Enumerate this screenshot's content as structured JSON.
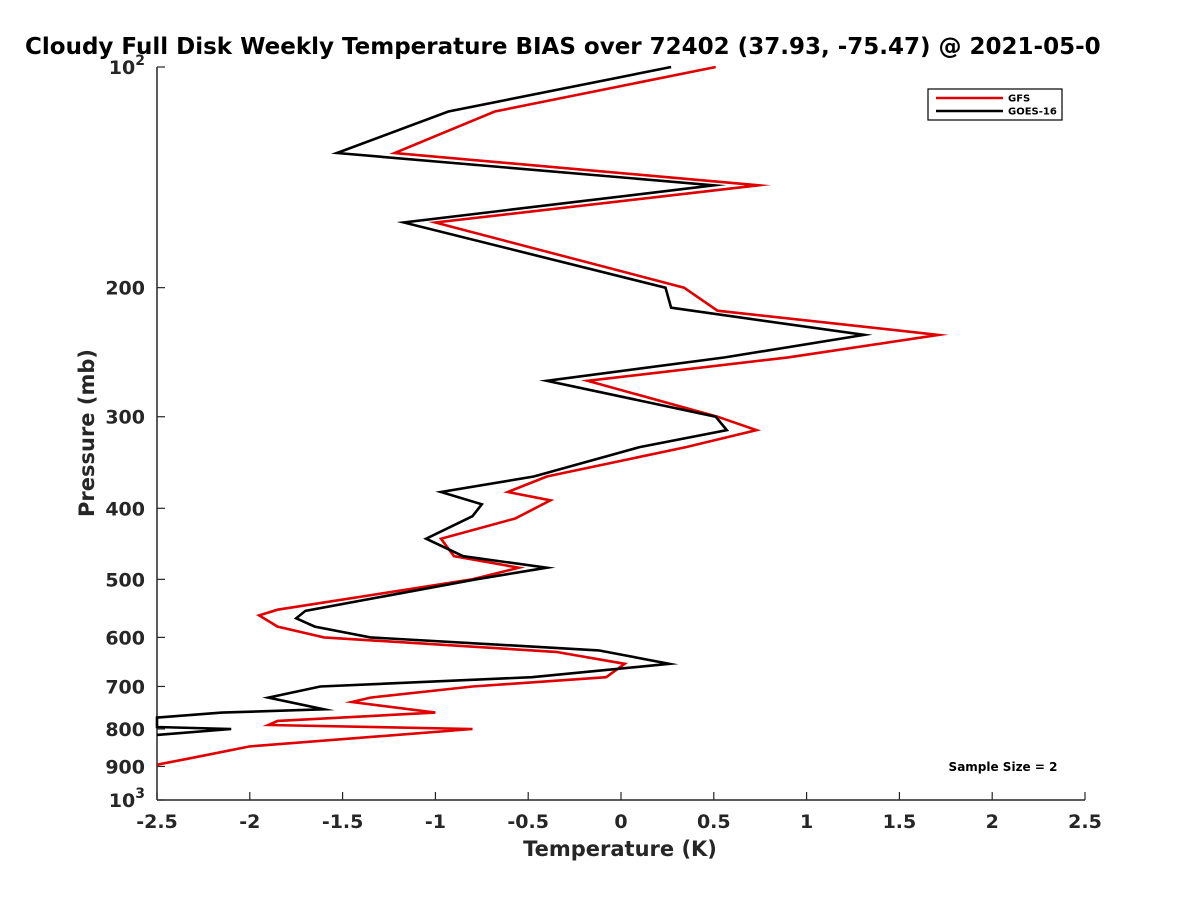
{
  "chart_data": {
    "type": "line",
    "title": "Cloudy Full Disk Weekly Temperature BIAS over 72402 (37.93, -75.47) @ 2021-05-0",
    "xlabel": "Temperature (K)",
    "ylabel": "Pressure (mb)",
    "xlim": [
      -2.5,
      2.5
    ],
    "ylim": [
      100,
      1000
    ],
    "y_scale": "log",
    "y_reversed": true,
    "grid": false,
    "legend_position": "top-right",
    "x_ticks": [
      -2.5,
      -2,
      -1.5,
      -1,
      -0.5,
      0,
      0.5,
      1,
      1.5,
      2,
      2.5
    ],
    "x_tick_labels": [
      "-2.5",
      "-2",
      "-1.5",
      "-1",
      "-0.5",
      "0",
      "0.5",
      "1",
      "1.5",
      "2",
      "2.5"
    ],
    "y_ticks": [
      100,
      200,
      300,
      400,
      500,
      600,
      700,
      800,
      900,
      1000
    ],
    "y_tick_labels": [
      {
        "base": "10",
        "exp": "2"
      },
      {
        "base": "200",
        "exp": ""
      },
      {
        "base": "300",
        "exp": ""
      },
      {
        "base": "400",
        "exp": ""
      },
      {
        "base": "500",
        "exp": ""
      },
      {
        "base": "600",
        "exp": ""
      },
      {
        "base": "700",
        "exp": ""
      },
      {
        "base": "800",
        "exp": ""
      },
      {
        "base": "900",
        "exp": ""
      },
      {
        "base": "10",
        "exp": "3"
      }
    ],
    "series": [
      {
        "name": "GFS",
        "color": "#e00000",
        "points": [
          [
            0.51,
            100
          ],
          [
            -0.68,
            115
          ],
          [
            -1.22,
            131
          ],
          [
            0.74,
            145
          ],
          [
            -1.0,
            163
          ],
          [
            0.34,
            200
          ],
          [
            0.52,
            215
          ],
          [
            1.71,
            232
          ],
          [
            0.9,
            249
          ],
          [
            -0.18,
            268
          ],
          [
            0.52,
            300
          ],
          [
            0.73,
            313
          ],
          [
            0.35,
            330
          ],
          [
            -0.4,
            362
          ],
          [
            -0.61,
            380
          ],
          [
            -0.38,
            390
          ],
          [
            -0.57,
            413
          ],
          [
            -0.97,
            440
          ],
          [
            -0.9,
            465
          ],
          [
            -0.55,
            482
          ],
          [
            -0.8,
            500
          ],
          [
            -1.85,
            550
          ],
          [
            -1.95,
            560
          ],
          [
            -1.85,
            580
          ],
          [
            -1.6,
            600
          ],
          [
            -0.35,
            628
          ],
          [
            0.02,
            652
          ],
          [
            -0.08,
            680
          ],
          [
            -0.8,
            700
          ],
          [
            -1.35,
            725
          ],
          [
            -1.45,
            735
          ],
          [
            -1.0,
            760
          ],
          [
            -1.85,
            780
          ],
          [
            -1.9,
            790
          ],
          [
            -0.8,
            800
          ],
          [
            -2.0,
            845
          ],
          [
            -2.2,
            865
          ],
          [
            -2.35,
            880
          ],
          [
            -2.5,
            895
          ]
        ]
      },
      {
        "name": "GOES-16",
        "color": "#000000",
        "points": [
          [
            0.27,
            100
          ],
          [
            -0.93,
            115
          ],
          [
            -1.53,
            131
          ],
          [
            0.5,
            145
          ],
          [
            -1.17,
            163
          ],
          [
            0.24,
            200
          ],
          [
            0.27,
            213
          ],
          [
            1.31,
            232
          ],
          [
            0.56,
            249
          ],
          [
            -0.4,
            268
          ],
          [
            0.51,
            300
          ],
          [
            0.57,
            313
          ],
          [
            0.1,
            330
          ],
          [
            -0.47,
            362
          ],
          [
            -0.97,
            380
          ],
          [
            -0.75,
            395
          ],
          [
            -0.8,
            410
          ],
          [
            -1.05,
            440
          ],
          [
            -0.85,
            465
          ],
          [
            -0.4,
            482
          ],
          [
            -0.78,
            500
          ],
          [
            -1.7,
            552
          ],
          [
            -1.75,
            565
          ],
          [
            -1.65,
            580
          ],
          [
            -1.35,
            600
          ],
          [
            -0.12,
            625
          ],
          [
            0.26,
            652
          ],
          [
            -0.48,
            680
          ],
          [
            -1.62,
            700
          ],
          [
            -1.9,
            725
          ],
          [
            -1.6,
            752
          ],
          [
            -2.15,
            760
          ],
          [
            -2.5,
            772
          ],
          [
            -2.5,
            795
          ],
          [
            -2.1,
            800
          ],
          [
            -2.5,
            815
          ]
        ]
      }
    ],
    "annotations": [
      {
        "text": "Sample Size = 2",
        "x": 2.14,
        "y": 900
      }
    ]
  }
}
